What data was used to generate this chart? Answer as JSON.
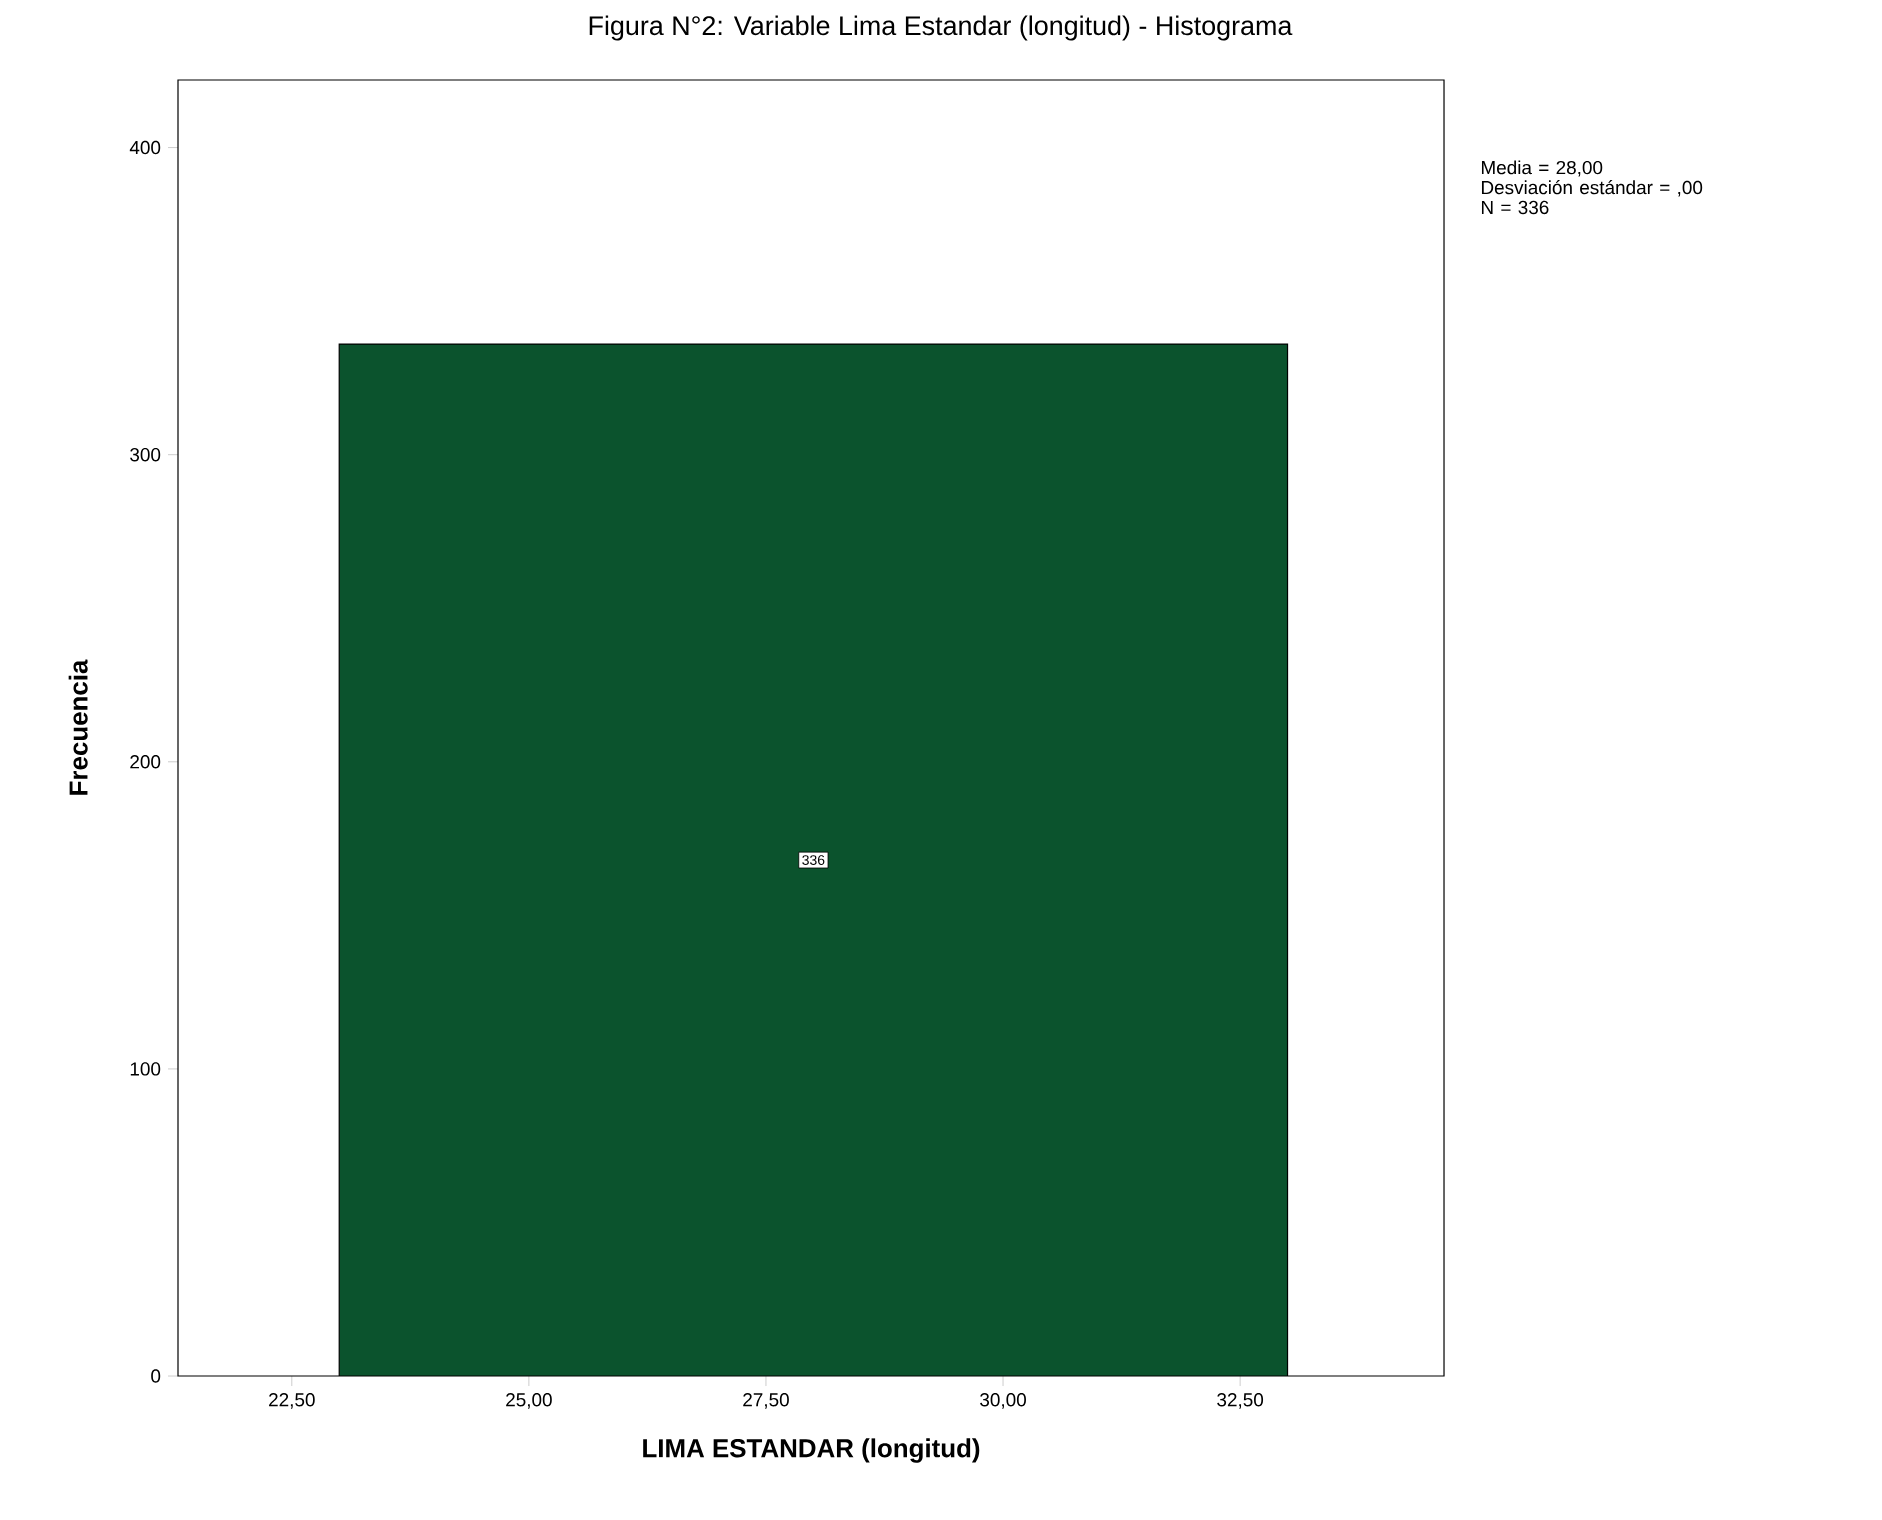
{
  "chart_data": {
    "type": "histogram",
    "title": "Figura N°2: Variable Lima Estandar (longitud) - Histograma",
    "xlabel": "LIMA ESTANDAR (longitud)",
    "ylabel": "Frecuencia",
    "bins": [
      23,
      33
    ],
    "values": [
      336
    ],
    "color": "#0b532d",
    "data_labels": true,
    "xlim": [
      21.3,
      34.65
    ],
    "xticks": [
      {
        "value": 22.5,
        "label": "22,50"
      },
      {
        "value": 25,
        "label": "25,00"
      },
      {
        "value": 27.5,
        "label": "27,50"
      },
      {
        "value": 30,
        "label": "30,00"
      },
      {
        "value": 32.5,
        "label": "32,50"
      }
    ],
    "ylim": [
      0,
      422
    ],
    "yticks": [
      0,
      100,
      200,
      300,
      400
    ],
    "annotations": [
      "Media = 28,00\nDesviación estándar = ,00\nN = 336"
    ],
    "grid": false
  }
}
